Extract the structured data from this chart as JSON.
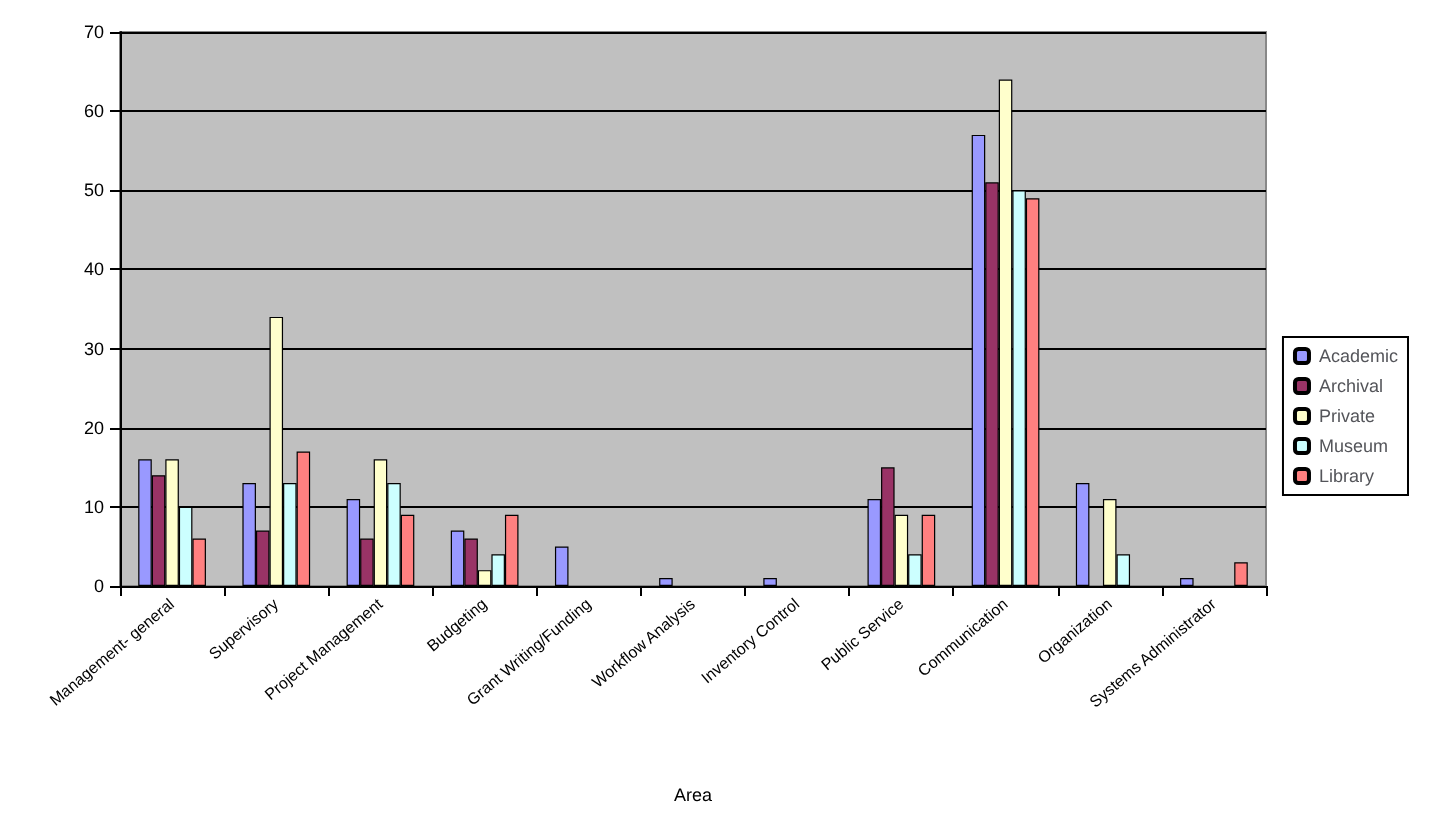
{
  "chart_data": {
    "type": "bar",
    "xlabel": "Area",
    "categories": [
      "Management- general",
      "Supervisory",
      "Project Management",
      "Budgeting",
      "Grant Writing/Funding",
      "Workflow Analysis",
      "Inventory Control",
      "Public Service",
      "Communication",
      "Organization",
      "Systems Administrator"
    ],
    "series": [
      {
        "name": "Academic",
        "color": "#9999ff",
        "values": [
          16,
          13,
          11,
          7,
          5,
          1,
          1,
          11,
          57,
          13,
          1
        ]
      },
      {
        "name": "Archival",
        "color": "#993366",
        "values": [
          14,
          7,
          6,
          6,
          null,
          null,
          null,
          15,
          51,
          null,
          null
        ]
      },
      {
        "name": "Private",
        "color": "#ffffcc",
        "values": [
          16,
          34,
          16,
          2,
          null,
          null,
          null,
          9,
          64,
          11,
          null
        ]
      },
      {
        "name": "Museum",
        "color": "#ccffff",
        "values": [
          10,
          13,
          13,
          4,
          null,
          null,
          null,
          4,
          50,
          4,
          null
        ]
      },
      {
        "name": "Library",
        "color": "#ff8080",
        "values": [
          6,
          17,
          9,
          9,
          null,
          null,
          null,
          9,
          49,
          null,
          3
        ]
      }
    ],
    "ylim": [
      0,
      70
    ],
    "yticks": [
      0,
      10,
      20,
      30,
      40,
      50,
      60,
      70
    ],
    "grid": "y",
    "legend": "right"
  }
}
